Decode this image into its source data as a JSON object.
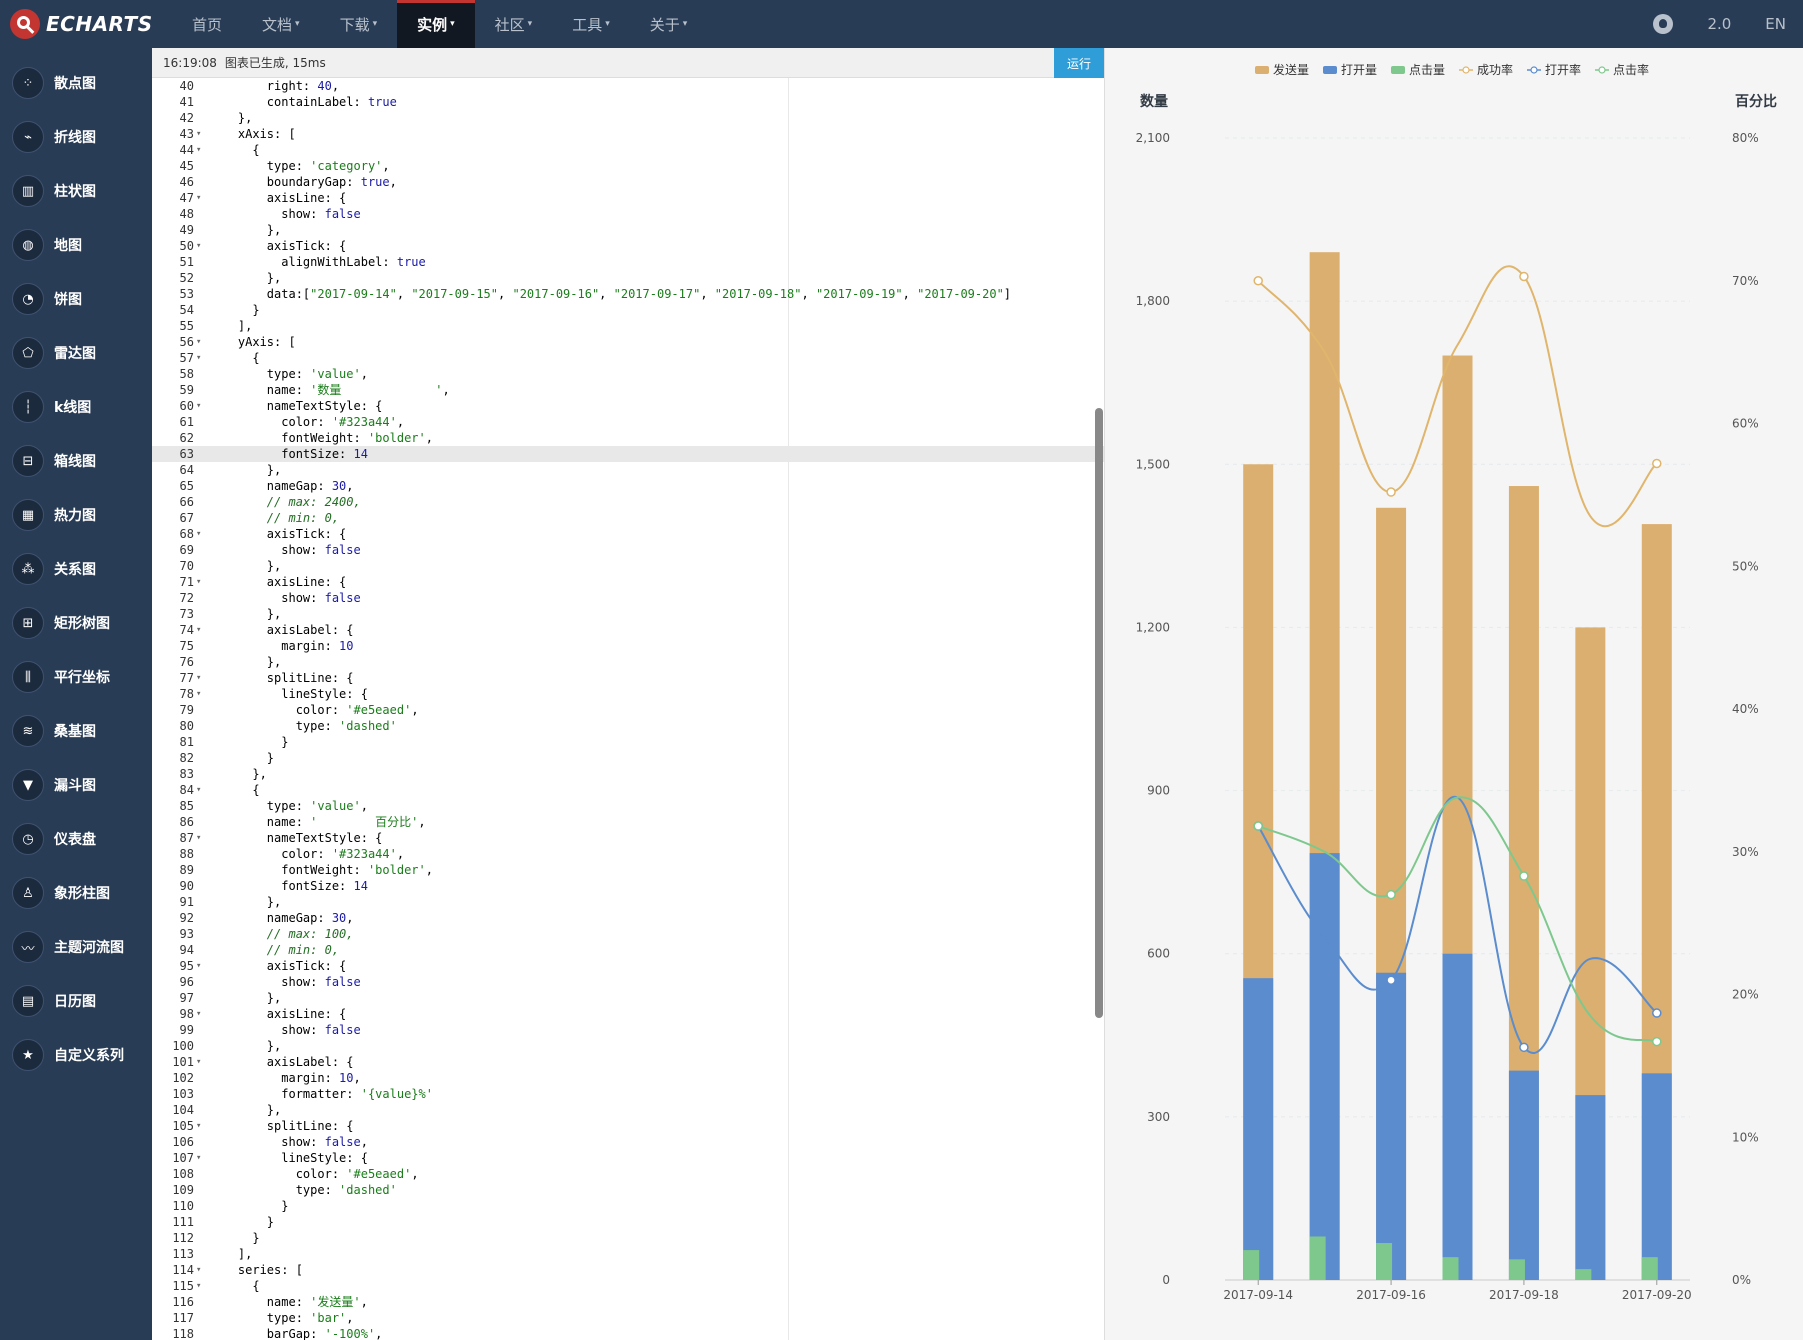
{
  "nav": {
    "brand": "ECHARTS",
    "items": [
      {
        "label": "首页",
        "has_caret": false,
        "active": false
      },
      {
        "label": "文档",
        "has_caret": true,
        "active": false
      },
      {
        "label": "下载",
        "has_caret": true,
        "active": false
      },
      {
        "label": "实例",
        "has_caret": true,
        "active": true
      },
      {
        "label": "社区",
        "has_caret": true,
        "active": false
      },
      {
        "label": "工具",
        "has_caret": true,
        "active": false
      },
      {
        "label": "关于",
        "has_caret": true,
        "active": false
      }
    ],
    "version": "2.0",
    "lang": "EN"
  },
  "sidebar": {
    "items": [
      {
        "label": "散点图",
        "icon": "scatter-icon",
        "glyph": "⁘"
      },
      {
        "label": "折线图",
        "icon": "line-icon",
        "glyph": "⌁"
      },
      {
        "label": "柱状图",
        "icon": "bar-icon",
        "glyph": "▥"
      },
      {
        "label": "地图",
        "icon": "map-icon",
        "glyph": "◍"
      },
      {
        "label": "饼图",
        "icon": "pie-icon",
        "glyph": "◔"
      },
      {
        "label": "雷达图",
        "icon": "radar-icon",
        "glyph": "⬠"
      },
      {
        "label": "k线图",
        "icon": "candlestick-icon",
        "glyph": "┆"
      },
      {
        "label": "箱线图",
        "icon": "boxplot-icon",
        "glyph": "⊟"
      },
      {
        "label": "热力图",
        "icon": "heatmap-icon",
        "glyph": "▦"
      },
      {
        "label": "关系图",
        "icon": "graph-icon",
        "glyph": "⁂"
      },
      {
        "label": "矩形树图",
        "icon": "treemap-icon",
        "glyph": "⊞"
      },
      {
        "label": "平行坐标",
        "icon": "parallel-icon",
        "glyph": "⫼"
      },
      {
        "label": "桑基图",
        "icon": "sankey-icon",
        "glyph": "≋"
      },
      {
        "label": "漏斗图",
        "icon": "funnel-icon",
        "glyph": "▼"
      },
      {
        "label": "仪表盘",
        "icon": "gauge-icon",
        "glyph": "◷"
      },
      {
        "label": "象形柱图",
        "icon": "pictorial-bar-icon",
        "glyph": "♙"
      },
      {
        "label": "主题河流图",
        "icon": "theme-river-icon",
        "glyph": "〰"
      },
      {
        "label": "日历图",
        "icon": "calendar-icon",
        "glyph": "▤"
      },
      {
        "label": "自定义系列",
        "icon": "custom-series-icon",
        "glyph": "★"
      }
    ]
  },
  "editor": {
    "timestamp": "16:19:08",
    "status": "图表已生成, 15ms",
    "run_label": "运行",
    "current_line": 63,
    "lines": [
      {
        "n": 40,
        "fold": false,
        "t": "        right: 40,"
      },
      {
        "n": 41,
        "fold": false,
        "t": "        containLabel: true"
      },
      {
        "n": 42,
        "fold": false,
        "t": "    },"
      },
      {
        "n": 43,
        "fold": true,
        "t": "    xAxis: ["
      },
      {
        "n": 44,
        "fold": true,
        "t": "      {"
      },
      {
        "n": 45,
        "fold": false,
        "t": "        type: 'category',"
      },
      {
        "n": 46,
        "fold": false,
        "t": "        boundaryGap: true,"
      },
      {
        "n": 47,
        "fold": true,
        "t": "        axisLine: {"
      },
      {
        "n": 48,
        "fold": false,
        "t": "          show: false"
      },
      {
        "n": 49,
        "fold": false,
        "t": "        },"
      },
      {
        "n": 50,
        "fold": true,
        "t": "        axisTick: {"
      },
      {
        "n": 51,
        "fold": false,
        "t": "          alignWithLabel: true"
      },
      {
        "n": 52,
        "fold": false,
        "t": "        },"
      },
      {
        "n": 53,
        "fold": false,
        "t": "        data:[\"2017-09-14\", \"2017-09-15\", \"2017-09-16\", \"2017-09-17\", \"2017-09-18\", \"2017-09-19\", \"2017-09-20\"]"
      },
      {
        "n": 54,
        "fold": false,
        "t": "      }"
      },
      {
        "n": 55,
        "fold": false,
        "t": "    ],"
      },
      {
        "n": 56,
        "fold": true,
        "t": "    yAxis: ["
      },
      {
        "n": 57,
        "fold": true,
        "t": "      {"
      },
      {
        "n": 58,
        "fold": false,
        "t": "        type: 'value',"
      },
      {
        "n": 59,
        "fold": false,
        "t": "        name: '数量             ',"
      },
      {
        "n": 60,
        "fold": true,
        "t": "        nameTextStyle: {"
      },
      {
        "n": 61,
        "fold": false,
        "t": "          color: '#323a44',"
      },
      {
        "n": 62,
        "fold": false,
        "t": "          fontWeight: 'bolder',"
      },
      {
        "n": 63,
        "fold": false,
        "t": "          fontSize: 14"
      },
      {
        "n": 64,
        "fold": false,
        "t": "        },"
      },
      {
        "n": 65,
        "fold": false,
        "t": "        nameGap: 30,"
      },
      {
        "n": 66,
        "fold": false,
        "t": "        // max: 2400,"
      },
      {
        "n": 67,
        "fold": false,
        "t": "        // min: 0,"
      },
      {
        "n": 68,
        "fold": true,
        "t": "        axisTick: {"
      },
      {
        "n": 69,
        "fold": false,
        "t": "          show: false"
      },
      {
        "n": 70,
        "fold": false,
        "t": "        },"
      },
      {
        "n": 71,
        "fold": true,
        "t": "        axisLine: {"
      },
      {
        "n": 72,
        "fold": false,
        "t": "          show: false"
      },
      {
        "n": 73,
        "fold": false,
        "t": "        },"
      },
      {
        "n": 74,
        "fold": true,
        "t": "        axisLabel: {"
      },
      {
        "n": 75,
        "fold": false,
        "t": "          margin: 10"
      },
      {
        "n": 76,
        "fold": false,
        "t": "        },"
      },
      {
        "n": 77,
        "fold": true,
        "t": "        splitLine: {"
      },
      {
        "n": 78,
        "fold": true,
        "t": "          lineStyle: {"
      },
      {
        "n": 79,
        "fold": false,
        "t": "            color: '#e5eaed',"
      },
      {
        "n": 80,
        "fold": false,
        "t": "            type: 'dashed'"
      },
      {
        "n": 81,
        "fold": false,
        "t": "          }"
      },
      {
        "n": 82,
        "fold": false,
        "t": "        }"
      },
      {
        "n": 83,
        "fold": false,
        "t": "      },"
      },
      {
        "n": 84,
        "fold": true,
        "t": "      {"
      },
      {
        "n": 85,
        "fold": false,
        "t": "        type: 'value',"
      },
      {
        "n": 86,
        "fold": false,
        "t": "        name: '        百分比',"
      },
      {
        "n": 87,
        "fold": true,
        "t": "        nameTextStyle: {"
      },
      {
        "n": 88,
        "fold": false,
        "t": "          color: '#323a44',"
      },
      {
        "n": 89,
        "fold": false,
        "t": "          fontWeight: 'bolder',"
      },
      {
        "n": 90,
        "fold": false,
        "t": "          fontSize: 14"
      },
      {
        "n": 91,
        "fold": false,
        "t": "        },"
      },
      {
        "n": 92,
        "fold": false,
        "t": "        nameGap: 30,"
      },
      {
        "n": 93,
        "fold": false,
        "t": "        // max: 100,"
      },
      {
        "n": 94,
        "fold": false,
        "t": "        // min: 0,"
      },
      {
        "n": 95,
        "fold": true,
        "t": "        axisTick: {"
      },
      {
        "n": 96,
        "fold": false,
        "t": "          show: false"
      },
      {
        "n": 97,
        "fold": false,
        "t": "        },"
      },
      {
        "n": 98,
        "fold": true,
        "t": "        axisLine: {"
      },
      {
        "n": 99,
        "fold": false,
        "t": "          show: false"
      },
      {
        "n": 100,
        "fold": false,
        "t": "        },"
      },
      {
        "n": 101,
        "fold": true,
        "t": "        axisLabel: {"
      },
      {
        "n": 102,
        "fold": false,
        "t": "          margin: 10,"
      },
      {
        "n": 103,
        "fold": false,
        "t": "          formatter: '{value}%'"
      },
      {
        "n": 104,
        "fold": false,
        "t": "        },"
      },
      {
        "n": 105,
        "fold": true,
        "t": "        splitLine: {"
      },
      {
        "n": 106,
        "fold": false,
        "t": "          show: false,"
      },
      {
        "n": 107,
        "fold": true,
        "t": "          lineStyle: {"
      },
      {
        "n": 108,
        "fold": false,
        "t": "            color: '#e5eaed',"
      },
      {
        "n": 109,
        "fold": false,
        "t": "            type: 'dashed'"
      },
      {
        "n": 110,
        "fold": false,
        "t": "          }"
      },
      {
        "n": 111,
        "fold": false,
        "t": "        }"
      },
      {
        "n": 112,
        "fold": false,
        "t": "      }"
      },
      {
        "n": 113,
        "fold": false,
        "t": "    ],"
      },
      {
        "n": 114,
        "fold": true,
        "t": "    series: ["
      },
      {
        "n": 115,
        "fold": true,
        "t": "      {"
      },
      {
        "n": 116,
        "fold": false,
        "t": "        name: '发送量',"
      },
      {
        "n": 117,
        "fold": false,
        "t": "        type: 'bar',"
      },
      {
        "n": 118,
        "fold": false,
        "t": "        barGap: '-100%',"
      }
    ]
  },
  "chart_data": {
    "type": "bar",
    "categories": [
      "2017-09-14",
      "2017-09-15",
      "2017-09-16",
      "2017-09-17",
      "2017-09-18",
      "2017-09-19",
      "2017-09-20"
    ],
    "x_tick_labels": [
      "2017-09-14",
      "",
      "2017-09-16",
      "",
      "2017-09-18",
      "",
      "2017-09-20"
    ],
    "legend_position": "top-center",
    "y_left": {
      "name": "数量",
      "range": [
        0,
        2100
      ],
      "ticks": [
        "0",
        "300",
        "600",
        "900",
        "1,200",
        "1,500",
        "1,800",
        "2,100"
      ],
      "grid": "dashed"
    },
    "y_right": {
      "name": "百分比",
      "range": [
        0,
        80
      ],
      "ticks": [
        "0%",
        "10%",
        "20%",
        "30%",
        "40%",
        "50%",
        "60%",
        "70%",
        "80%"
      ]
    },
    "series": [
      {
        "name": "发送量",
        "type": "bar",
        "axis": "left",
        "color": "#dbaf6f",
        "values": [
          1500,
          1890,
          1420,
          1700,
          1460,
          1200,
          1390
        ]
      },
      {
        "name": "打开量",
        "type": "bar",
        "axis": "left",
        "color": "#5b8ccd",
        "values": [
          555,
          785,
          565,
          600,
          385,
          340,
          380
        ]
      },
      {
        "name": "点击量",
        "type": "bar",
        "axis": "left",
        "color": "#7ec88e",
        "values": [
          55,
          80,
          68,
          42,
          38,
          20,
          42
        ]
      },
      {
        "name": "成功率",
        "type": "line",
        "axis": "right",
        "color": "#e0b56c",
        "values": [
          70.0,
          65.0,
          55.2,
          65.5,
          70.3,
          53.5,
          57.2
        ]
      },
      {
        "name": "打开率",
        "type": "line",
        "axis": "right",
        "color": "#5b8ccd",
        "values": [
          31.8,
          24.0,
          21.0,
          33.8,
          16.3,
          22.5,
          18.7
        ]
      },
      {
        "name": "点击率",
        "type": "line",
        "axis": "right",
        "color": "#7ec88e",
        "values": [
          31.8,
          30.0,
          27.0,
          33.8,
          28.3,
          18.5,
          16.7
        ]
      }
    ]
  }
}
